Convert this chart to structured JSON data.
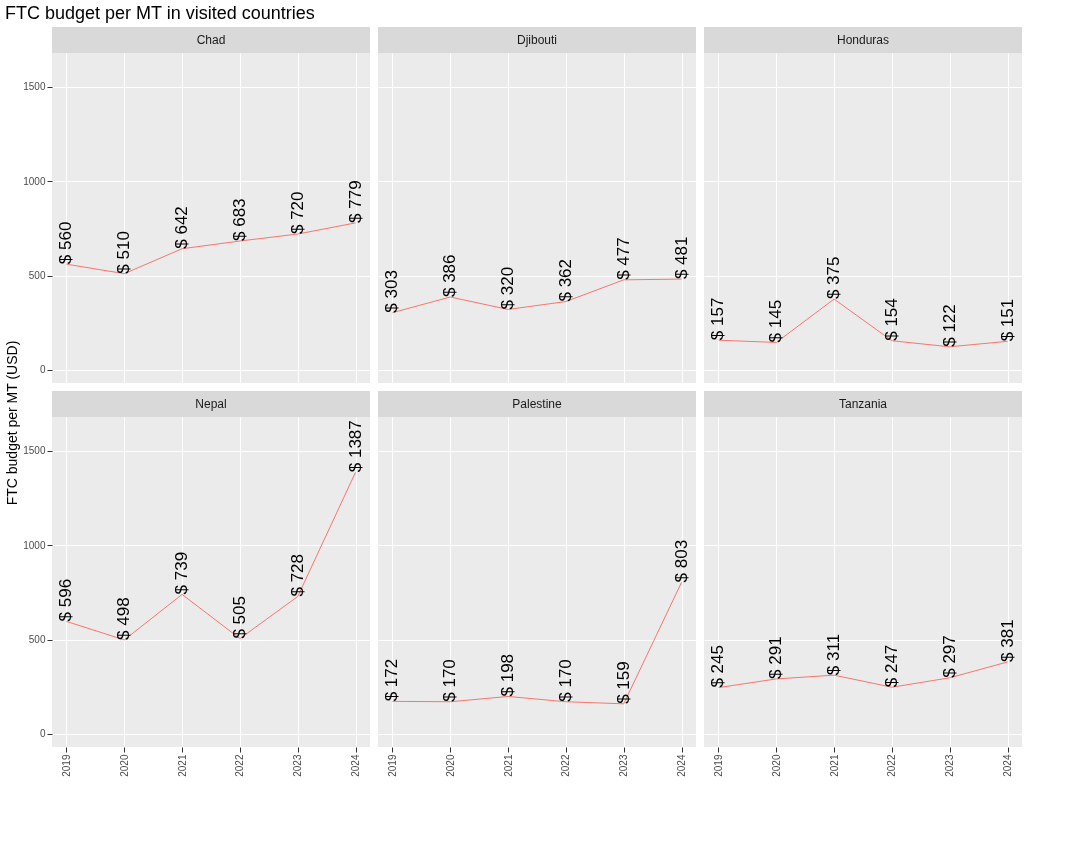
{
  "chart_data": [
    {
      "type": "line",
      "title": "FTC budget per MT in visited countries",
      "subtitle": "Chad",
      "ylabel": "FTC budget per MT (USD)",
      "x": [
        2019,
        2020,
        2021,
        2022,
        2023,
        2024
      ],
      "values": [
        560,
        510,
        642,
        683,
        720,
        779
      ],
      "value_labels": [
        "$ 560",
        "$ 510",
        "$ 642",
        "$ 683",
        "$ 720",
        "$ 779"
      ],
      "color": "#f8766d",
      "xlim": [
        2018.75,
        2024.25
      ],
      "xticks": [
        2019,
        2020,
        2021,
        2022,
        2023,
        2024
      ],
      "ylim": [
        -70,
        1680
      ],
      "yticks": [
        0,
        500,
        1000,
        1500
      ],
      "grid": true,
      "tick_labels": "y"
    },
    {
      "type": "line",
      "subtitle": "Djibouti",
      "x": [
        2019,
        2020,
        2021,
        2022,
        2023,
        2024
      ],
      "values": [
        303,
        386,
        320,
        362,
        477,
        481
      ],
      "value_labels": [
        "$ 303",
        "$ 386",
        "$ 320",
        "$ 362",
        "$ 477",
        "$ 481"
      ],
      "color": "#f8766d",
      "xlim": [
        2018.75,
        2024.25
      ],
      "xticks": [
        2019,
        2020,
        2021,
        2022,
        2023,
        2024
      ],
      "ylim": [
        -70,
        1680
      ],
      "yticks": [
        0,
        500,
        1000,
        1500
      ],
      "grid": true,
      "tick_labels": false
    },
    {
      "type": "line",
      "subtitle": "Honduras",
      "x": [
        2019,
        2020,
        2021,
        2022,
        2023,
        2024
      ],
      "values": [
        157,
        145,
        375,
        154,
        122,
        151
      ],
      "value_labels": [
        "$ 157",
        "$ 145",
        "$ 375",
        "$ 154",
        "$ 122",
        "$ 151"
      ],
      "color": "#f8766d",
      "xlim": [
        2018.75,
        2024.25
      ],
      "xticks": [
        2019,
        2020,
        2021,
        2022,
        2023,
        2024
      ],
      "ylim": [
        -70,
        1680
      ],
      "yticks": [
        0,
        500,
        1000,
        1500
      ],
      "grid": true,
      "tick_labels": false
    },
    {
      "type": "line",
      "subtitle": "Nepal",
      "x": [
        2019,
        2020,
        2021,
        2022,
        2023,
        2024
      ],
      "values": [
        596,
        498,
        739,
        505,
        728,
        1387
      ],
      "value_labels": [
        "$ 596",
        "$ 498",
        "$ 739",
        "$ 505",
        "$ 728",
        "$ 1387"
      ],
      "color": "#f8766d",
      "xlim": [
        2018.75,
        2024.25
      ],
      "xticks": [
        2019,
        2020,
        2021,
        2022,
        2023,
        2024
      ],
      "ylim": [
        -70,
        1680
      ],
      "yticks": [
        0,
        500,
        1000,
        1500
      ],
      "grid": true
    },
    {
      "type": "line",
      "subtitle": "Palestine",
      "x": [
        2019,
        2020,
        2021,
        2022,
        2023,
        2024
      ],
      "values": [
        172,
        170,
        198,
        170,
        159,
        803
      ],
      "value_labels": [
        "$ 172",
        "$ 170",
        "$ 198",
        "$ 170",
        "$ 159",
        "$ 803"
      ],
      "color": "#f8766d",
      "xlim": [
        2018.75,
        2024.25
      ],
      "xticks": [
        2019,
        2020,
        2021,
        2022,
        2023,
        2024
      ],
      "ylim": [
        -70,
        1680
      ],
      "yticks": [
        0,
        500,
        1000,
        1500
      ],
      "grid": true,
      "tick_labels": "x"
    },
    {
      "type": "line",
      "subtitle": "Tanzania",
      "x": [
        2019,
        2020,
        2021,
        2022,
        2023,
        2024
      ],
      "values": [
        245,
        291,
        311,
        247,
        297,
        381
      ],
      "value_labels": [
        "$ 245",
        "$ 291",
        "$ 311",
        "$ 247",
        "$ 297",
        "$ 381"
      ],
      "color": "#f8766d",
      "xlim": [
        2018.75,
        2024.25
      ],
      "xticks": [
        2019,
        2020,
        2021,
        2022,
        2023,
        2024
      ],
      "ylim": [
        -70,
        1680
      ],
      "yticks": [
        0,
        500,
        1000,
        1500
      ],
      "grid": true,
      "tick_labels": "x"
    }
  ]
}
